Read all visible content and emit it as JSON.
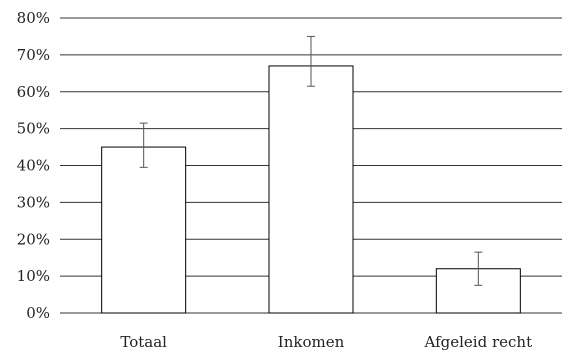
{
  "chart_data": {
    "type": "bar",
    "title": "",
    "xlabel": "",
    "ylabel": "",
    "categories": [
      "Totaal",
      "Inkomen",
      "Afgeleid recht"
    ],
    "values": [
      45,
      67,
      12
    ],
    "error_low": [
      39.5,
      61.5,
      7.5
    ],
    "error_high": [
      51.5,
      75,
      16.5
    ],
    "ylim": [
      0,
      80
    ],
    "yticks": [
      0,
      10,
      20,
      30,
      40,
      50,
      60,
      70,
      80
    ],
    "ytick_labels": [
      "0%",
      "10%",
      "20%",
      "30%",
      "40%",
      "50%",
      "60%",
      "70%",
      "80%"
    ],
    "grid": true,
    "legend": "none",
    "colors": {
      "bar_fill": "#ffffff",
      "bar_stroke": "#000000",
      "grid": "#333333",
      "error_bar": "#555555"
    }
  }
}
